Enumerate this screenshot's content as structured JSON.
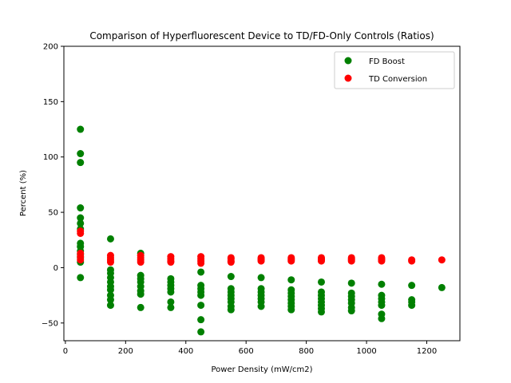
{
  "chart_data": {
    "type": "scatter",
    "title": "Comparison of Hyperfluorescent Device to TD/FD-Only Controls (Ratios)",
    "xlabel": "Power Density (mW/cm2)",
    "ylabel": "Percent (%)",
    "xlim": [
      -5,
      1310
    ],
    "ylim": [
      -66,
      200
    ],
    "xticks": [
      0,
      200,
      400,
      600,
      800,
      1000,
      1200
    ],
    "yticks": [
      -50,
      0,
      50,
      100,
      150,
      200
    ],
    "grid": false,
    "legend_position": "top-right",
    "series": [
      {
        "name": "FD Boost",
        "color": "#008000",
        "points": [
          [
            50,
            125
          ],
          [
            50,
            103
          ],
          [
            50,
            95
          ],
          [
            50,
            54
          ],
          [
            50,
            45
          ],
          [
            50,
            40
          ],
          [
            50,
            35
          ],
          [
            50,
            22
          ],
          [
            50,
            19
          ],
          [
            50,
            15
          ],
          [
            50,
            12
          ],
          [
            50,
            9
          ],
          [
            50,
            5
          ],
          [
            50,
            -9
          ],
          [
            150,
            26
          ],
          [
            150,
            -2
          ],
          [
            150,
            -5
          ],
          [
            150,
            -9
          ],
          [
            150,
            -13
          ],
          [
            150,
            -17
          ],
          [
            150,
            -20
          ],
          [
            150,
            -25
          ],
          [
            150,
            -29
          ],
          [
            150,
            -34
          ],
          [
            250,
            13
          ],
          [
            250,
            -7
          ],
          [
            250,
            -10
          ],
          [
            250,
            -13
          ],
          [
            250,
            -17
          ],
          [
            250,
            -21
          ],
          [
            250,
            -24
          ],
          [
            250,
            -36
          ],
          [
            350,
            -10
          ],
          [
            350,
            -13
          ],
          [
            350,
            -16
          ],
          [
            350,
            -19
          ],
          [
            350,
            -22
          ],
          [
            350,
            -31
          ],
          [
            350,
            -36
          ],
          [
            450,
            -4
          ],
          [
            450,
            -16
          ],
          [
            450,
            -19
          ],
          [
            450,
            -22
          ],
          [
            450,
            -25
          ],
          [
            450,
            -34
          ],
          [
            450,
            -47
          ],
          [
            450,
            -58
          ],
          [
            550,
            -8
          ],
          [
            550,
            -19
          ],
          [
            550,
            -22
          ],
          [
            550,
            -25
          ],
          [
            550,
            -28
          ],
          [
            550,
            -31
          ],
          [
            550,
            -35
          ],
          [
            550,
            -38
          ],
          [
            650,
            -9
          ],
          [
            650,
            -19
          ],
          [
            650,
            -22
          ],
          [
            650,
            -25
          ],
          [
            650,
            -28
          ],
          [
            650,
            -31
          ],
          [
            650,
            -35
          ],
          [
            750,
            -11
          ],
          [
            750,
            -20
          ],
          [
            750,
            -23
          ],
          [
            750,
            -26
          ],
          [
            750,
            -29
          ],
          [
            750,
            -32
          ],
          [
            750,
            -35
          ],
          [
            750,
            -38
          ],
          [
            850,
            -13
          ],
          [
            850,
            -22
          ],
          [
            850,
            -25
          ],
          [
            850,
            -28
          ],
          [
            850,
            -31
          ],
          [
            850,
            -34
          ],
          [
            850,
            -37
          ],
          [
            850,
            -40
          ],
          [
            950,
            -14
          ],
          [
            950,
            -23
          ],
          [
            950,
            -26
          ],
          [
            950,
            -29
          ],
          [
            950,
            -32
          ],
          [
            950,
            -36
          ],
          [
            950,
            -39
          ],
          [
            1050,
            -15
          ],
          [
            1050,
            -25
          ],
          [
            1050,
            -28
          ],
          [
            1050,
            -31
          ],
          [
            1050,
            -34
          ],
          [
            1050,
            -42
          ],
          [
            1050,
            -46
          ],
          [
            1150,
            -16
          ],
          [
            1150,
            -29
          ],
          [
            1150,
            -31
          ],
          [
            1150,
            -34
          ],
          [
            1250,
            -18
          ]
        ]
      },
      {
        "name": "TD Conversion",
        "color": "#ff0000",
        "points": [
          [
            50,
            33
          ],
          [
            50,
            31
          ],
          [
            50,
            13
          ],
          [
            50,
            10
          ],
          [
            50,
            7
          ],
          [
            150,
            11
          ],
          [
            150,
            9
          ],
          [
            150,
            7
          ],
          [
            150,
            5
          ],
          [
            250,
            11
          ],
          [
            250,
            9
          ],
          [
            250,
            7
          ],
          [
            250,
            5
          ],
          [
            350,
            10
          ],
          [
            350,
            8
          ],
          [
            350,
            6
          ],
          [
            350,
            5
          ],
          [
            450,
            10
          ],
          [
            450,
            8
          ],
          [
            450,
            6
          ],
          [
            450,
            4
          ],
          [
            550,
            9
          ],
          [
            550,
            8
          ],
          [
            550,
            6
          ],
          [
            550,
            5
          ],
          [
            650,
            9
          ],
          [
            650,
            8
          ],
          [
            650,
            7
          ],
          [
            650,
            6
          ],
          [
            750,
            9
          ],
          [
            750,
            8
          ],
          [
            750,
            7
          ],
          [
            750,
            6
          ],
          [
            850,
            9
          ],
          [
            850,
            8
          ],
          [
            850,
            7
          ],
          [
            850,
            6
          ],
          [
            950,
            9
          ],
          [
            950,
            8
          ],
          [
            950,
            7
          ],
          [
            950,
            6
          ],
          [
            1050,
            9
          ],
          [
            1050,
            8
          ],
          [
            1050,
            7
          ],
          [
            1050,
            6
          ],
          [
            1150,
            7
          ],
          [
            1150,
            6
          ],
          [
            1250,
            7
          ]
        ]
      }
    ]
  }
}
